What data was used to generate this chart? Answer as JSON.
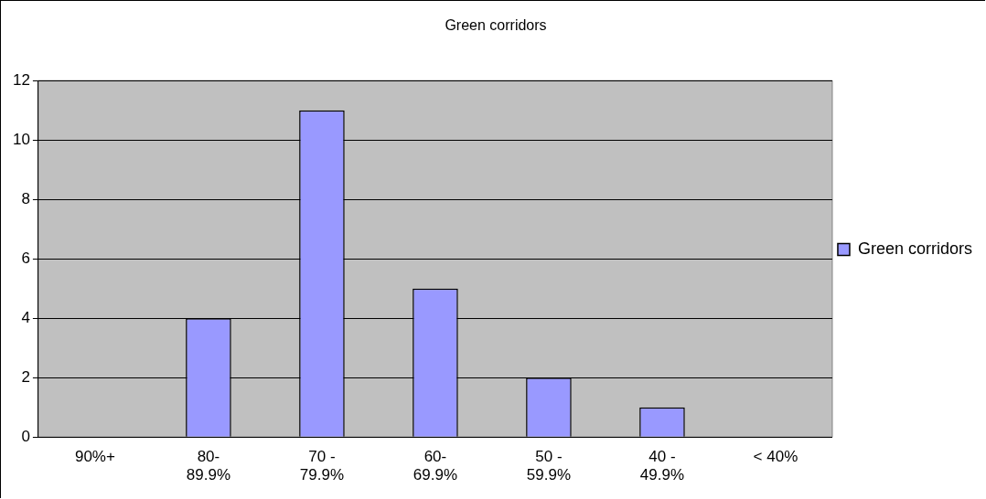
{
  "chart_data": {
    "type": "bar",
    "title": "Green corridors",
    "categories": [
      "90%+",
      "80-89.9%",
      "70 - 79.9%",
      "60-69.9%",
      "50 - 59.9%",
      "40 - 49.9%",
      "< 40%"
    ],
    "series": [
      {
        "name": "Green corridors",
        "color": "#9999ff",
        "values": [
          0,
          4,
          11,
          5,
          2,
          1,
          0
        ]
      }
    ],
    "ylim": [
      0,
      12
    ],
    "yticks": [
      0,
      2,
      4,
      6,
      8,
      10,
      12
    ],
    "grid": "y",
    "legend": "right"
  }
}
